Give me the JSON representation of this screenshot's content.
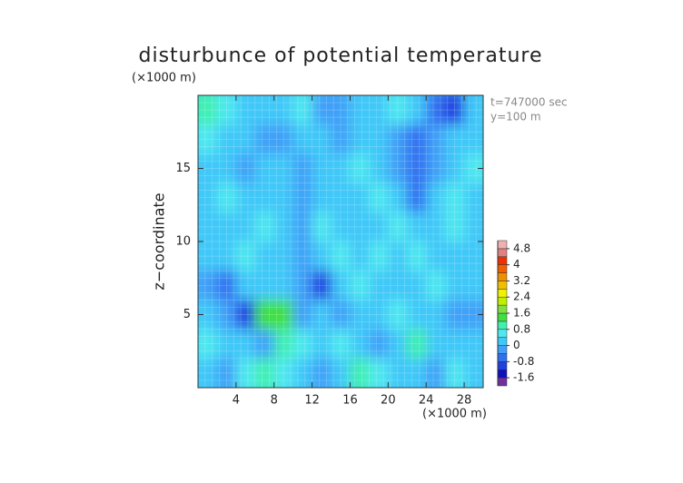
{
  "chart_data": {
    "type": "contour",
    "title": "disturbunce of potential temperature",
    "y_unit": "(×1000 m)",
    "x_unit": "(×1000 m)",
    "ylabel": "z−coordinate",
    "annotations": [
      "t=747000 sec",
      "y=100 m"
    ],
    "xlim": [
      0,
      30
    ],
    "ylim": [
      0,
      20
    ],
    "xticks": [
      4,
      8,
      12,
      16,
      20,
      24,
      28
    ],
    "yticks": [
      5,
      10,
      15
    ],
    "grid": true,
    "x": [
      1,
      3,
      5,
      7,
      9,
      11,
      13,
      15,
      17,
      19,
      21,
      23,
      25,
      27,
      29
    ],
    "z": [
      19,
      17,
      15,
      13,
      11,
      9,
      7,
      5,
      3,
      1
    ],
    "values": [
      [
        0.8,
        0.4,
        0,
        0,
        0,
        0.4,
        -0.4,
        -0.4,
        0,
        0,
        0.4,
        0,
        -0.8,
        -1.2,
        0
      ],
      [
        0.4,
        0,
        0,
        -0.4,
        -0.4,
        0,
        0,
        -0.4,
        0,
        0,
        -0.4,
        -0.8,
        -0.4,
        0,
        0
      ],
      [
        0,
        0,
        -0.4,
        0,
        0,
        -0.4,
        0,
        0,
        0.4,
        0,
        -0.4,
        -0.8,
        -0.4,
        0,
        0.4
      ],
      [
        0,
        0.4,
        0,
        0,
        0,
        -0.4,
        0,
        0,
        0,
        0.4,
        0,
        -0.8,
        0,
        0.4,
        0
      ],
      [
        0,
        0,
        0,
        0.4,
        0,
        -0.4,
        0.4,
        0,
        0,
        0,
        0.4,
        0,
        0,
        0.4,
        0
      ],
      [
        0,
        0,
        0.4,
        0,
        0,
        -0.4,
        0,
        0.4,
        0,
        0.4,
        0,
        0.4,
        0,
        0,
        0
      ],
      [
        -0.4,
        -0.8,
        0,
        0,
        0,
        -0.4,
        -1.2,
        0,
        0.4,
        0,
        0,
        0,
        0.4,
        0,
        0
      ],
      [
        0,
        -0.4,
        -1.2,
        1.2,
        1.2,
        -0.4,
        0,
        -0.4,
        0,
        0,
        0.4,
        0,
        0,
        -0.4,
        -0.4
      ],
      [
        0.4,
        0,
        0,
        -0.4,
        0.8,
        0.4,
        0,
        0.4,
        0,
        -0.4,
        0,
        0.8,
        0,
        0,
        0
      ],
      [
        0,
        -0.4,
        0.4,
        0.8,
        0.4,
        0,
        -0.4,
        0,
        0.8,
        0.4,
        0,
        0,
        -0.4,
        0.4,
        0
      ]
    ],
    "clim": [
      -2,
      5.2
    ],
    "cticks": [
      -1.6,
      -0.8,
      0,
      0.8,
      1.6,
      2.4,
      3.2,
      4,
      4.8
    ],
    "colors": [
      "#7030a0",
      "#1010c0",
      "#2040e0",
      "#3070f0",
      "#40a0f8",
      "#40c8f8",
      "#50e8f0",
      "#40f0b0",
      "#40e040",
      "#80e040",
      "#c0f000",
      "#f0f000",
      "#f0c000",
      "#f09000",
      "#f06000",
      "#f03000",
      "#e08080",
      "#f0b0b0"
    ]
  }
}
